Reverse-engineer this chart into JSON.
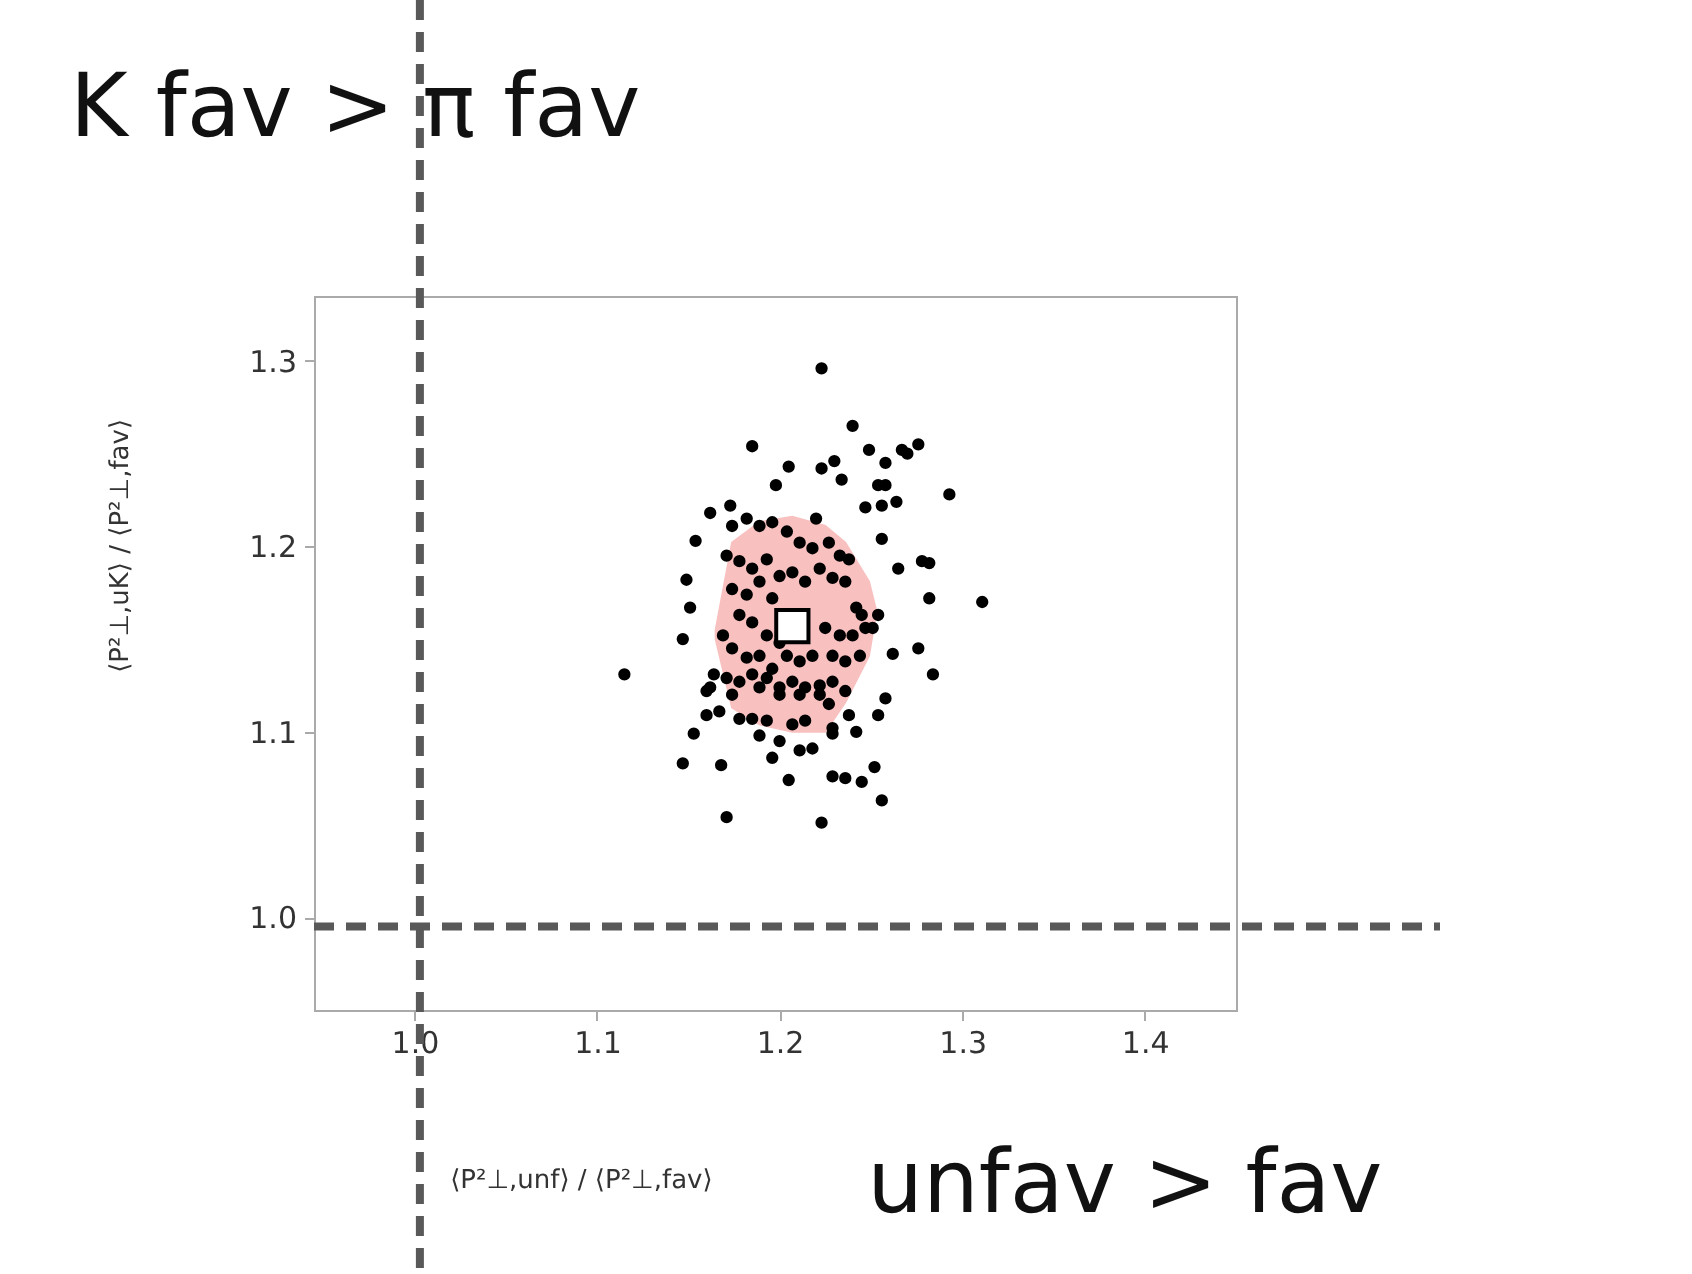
{
  "chart_data": {
    "type": "scatter",
    "title": "K fav > π fav",
    "xlabel": "⟨P²⊥,unf⟩ / ⟨P²⊥,fav⟩",
    "ylabel": "⟨P²⊥,uK⟩ / ⟨P²⊥,fav⟩",
    "annotations": [
      "unfav > fav"
    ],
    "xlim": [
      0.945,
      1.45
    ],
    "ylim": [
      0.95,
      1.335
    ],
    "xticks": [
      {
        "value": 1.0,
        "label": "1.0"
      },
      1.1,
      1.2,
      1.3,
      1.4
    ],
    "yticks": [
      {
        "value": 1.0,
        "label": "1.0"
      },
      1.1,
      1.2,
      1.3
    ],
    "grid": false,
    "ref_lines": [
      {
        "axis": "x",
        "value": 1.003,
        "line_style": "dashed",
        "color": "#595959"
      },
      {
        "axis": "y",
        "value": 0.995,
        "line_style": "dashed",
        "color": "#595959"
      }
    ],
    "series": [
      {
        "type": "area",
        "color": "#f9c0c0",
        "x": [
          1.165,
          1.174,
          1.189,
          1.207,
          1.225,
          1.236,
          1.249,
          1.253,
          1.249,
          1.236,
          1.225,
          1.207,
          1.189,
          1.174,
          1.165
        ],
        "values": [
          1.155,
          1.202,
          1.213,
          1.216,
          1.211,
          1.202,
          1.181,
          1.165,
          1.141,
          1.116,
          1.1,
          1.1,
          1.104,
          1.113,
          1.15
        ]
      },
      {
        "marker": "circle",
        "color": "#000000",
        "x": [
          1.223,
          1.24,
          1.185,
          1.249,
          1.267,
          1.276,
          1.27,
          1.258,
          1.205,
          1.223,
          1.23,
          1.234,
          1.198,
          1.254,
          1.258,
          1.293,
          1.247,
          1.256,
          1.264,
          1.173,
          1.162,
          1.22,
          1.154,
          1.256,
          1.265,
          1.278,
          1.282,
          1.149,
          1.151,
          1.147,
          1.282,
          1.311,
          1.276,
          1.262,
          1.284,
          1.115,
          1.258,
          1.254,
          1.153,
          1.147,
          1.168,
          1.196,
          1.205,
          1.229,
          1.236,
          1.245,
          1.252,
          1.256,
          1.171,
          1.223,
          1.218,
          1.211,
          1.229,
          1.242,
          1.238,
          1.185,
          1.189,
          1.2,
          1.16,
          1.162,
          1.174,
          1.182,
          1.189,
          1.196,
          1.204,
          1.211,
          1.218,
          1.227,
          1.233,
          1.238,
          1.171,
          1.178,
          1.185,
          1.193,
          1.2,
          1.207,
          1.214,
          1.222,
          1.229,
          1.236,
          1.242,
          1.174,
          1.182,
          1.189,
          1.196,
          1.178,
          1.185,
          1.193,
          1.2,
          1.169,
          1.174,
          1.182,
          1.189,
          1.196,
          1.204,
          1.211,
          1.218,
          1.225,
          1.233,
          1.24,
          1.247,
          1.254,
          1.229,
          1.236,
          1.244,
          1.164,
          1.171,
          1.178,
          1.185,
          1.193,
          1.2,
          1.207,
          1.214,
          1.222,
          1.229,
          1.236,
          1.16,
          1.174,
          1.189,
          1.2,
          1.211,
          1.222,
          1.227,
          1.167,
          1.178,
          1.193,
          1.207,
          1.214,
          1.229,
          1.245,
          1.251
        ],
        "values": [
          1.296,
          1.265,
          1.254,
          1.252,
          1.252,
          1.255,
          1.25,
          1.245,
          1.243,
          1.242,
          1.246,
          1.236,
          1.233,
          1.233,
          1.233,
          1.228,
          1.221,
          1.222,
          1.224,
          1.222,
          1.218,
          1.215,
          1.203,
          1.204,
          1.188,
          1.192,
          1.191,
          1.182,
          1.167,
          1.15,
          1.172,
          1.17,
          1.145,
          1.142,
          1.131,
          1.131,
          1.118,
          1.109,
          1.099,
          1.083,
          1.082,
          1.086,
          1.074,
          1.076,
          1.075,
          1.073,
          1.081,
          1.063,
          1.054,
          1.051,
          1.091,
          1.09,
          1.099,
          1.1,
          1.109,
          1.107,
          1.098,
          1.095,
          1.109,
          1.124,
          1.211,
          1.215,
          1.211,
          1.213,
          1.208,
          1.202,
          1.199,
          1.202,
          1.195,
          1.193,
          1.195,
          1.192,
          1.188,
          1.193,
          1.184,
          1.186,
          1.181,
          1.188,
          1.183,
          1.181,
          1.167,
          1.177,
          1.174,
          1.181,
          1.172,
          1.163,
          1.159,
          1.152,
          1.148,
          1.152,
          1.145,
          1.14,
          1.141,
          1.134,
          1.141,
          1.138,
          1.141,
          1.156,
          1.152,
          1.152,
          1.156,
          1.163,
          1.141,
          1.138,
          1.141,
          1.131,
          1.129,
          1.127,
          1.131,
          1.129,
          1.124,
          1.127,
          1.124,
          1.125,
          1.127,
          1.122,
          1.122,
          1.12,
          1.124,
          1.12,
          1.12,
          1.12,
          1.115,
          1.111,
          1.107,
          1.106,
          1.104,
          1.106,
          1.102,
          1.163,
          1.156
        ]
      },
      {
        "type": "scatter",
        "marker": "square",
        "color": "#ffffff",
        "x": [
          1.207
        ],
        "values": [
          1.157
        ]
      }
    ]
  }
}
